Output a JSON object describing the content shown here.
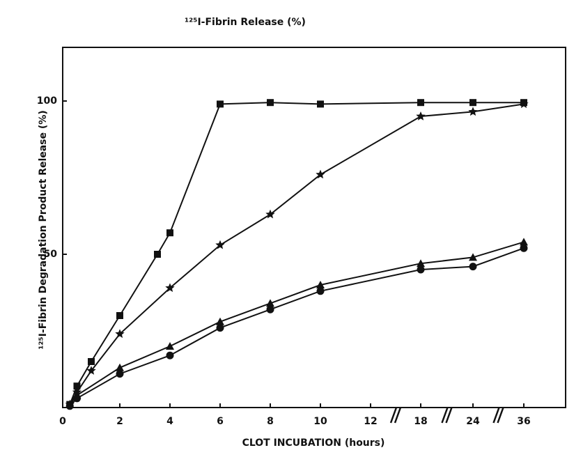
{
  "chart_data": {
    "type": "line",
    "title": "¹²⁵I-Fibrin Release (%)",
    "y_label": "¹²⁵I-Fibrin Degradation Product Release (%)",
    "x_label": "CLOT INCUBATION (hours)",
    "xlim": [
      0,
      40
    ],
    "ylim": [
      0,
      117.5
    ],
    "xticks": [
      0,
      2,
      4,
      6,
      8,
      10,
      12,
      18,
      24,
      36
    ],
    "yticks": [
      50,
      100
    ],
    "axis_breaks": [
      15,
      21,
      30
    ],
    "series": [
      {
        "marker": "square",
        "color": "#111111",
        "x": [
          0.25,
          0.5,
          1,
          2,
          3.5,
          4,
          6,
          8,
          10,
          18,
          24,
          36
        ],
        "values": [
          1,
          7,
          15,
          30,
          50,
          57,
          99,
          99.5,
          99,
          99.5,
          99.5,
          99.5
        ]
      },
      {
        "marker": "star",
        "color": "#111111",
        "x": [
          0.25,
          0.5,
          1,
          2,
          4,
          6,
          8,
          10,
          18,
          24,
          36
        ],
        "values": [
          1,
          5,
          12,
          24,
          39,
          53,
          63,
          76,
          95,
          96.5,
          99
        ]
      },
      {
        "marker": "triangle",
        "color": "#111111",
        "x": [
          0.25,
          0.5,
          2,
          4,
          6,
          8,
          10,
          18,
          24,
          36
        ],
        "values": [
          1,
          4,
          13,
          20,
          28,
          34,
          40,
          47,
          49,
          54
        ]
      },
      {
        "marker": "circle",
        "color": "#111111",
        "x": [
          0.25,
          0.5,
          2,
          4,
          6,
          8,
          10,
          18,
          24,
          36
        ],
        "values": [
          0.5,
          3,
          11,
          17,
          26,
          32,
          38,
          45,
          46,
          52
        ]
      }
    ]
  }
}
